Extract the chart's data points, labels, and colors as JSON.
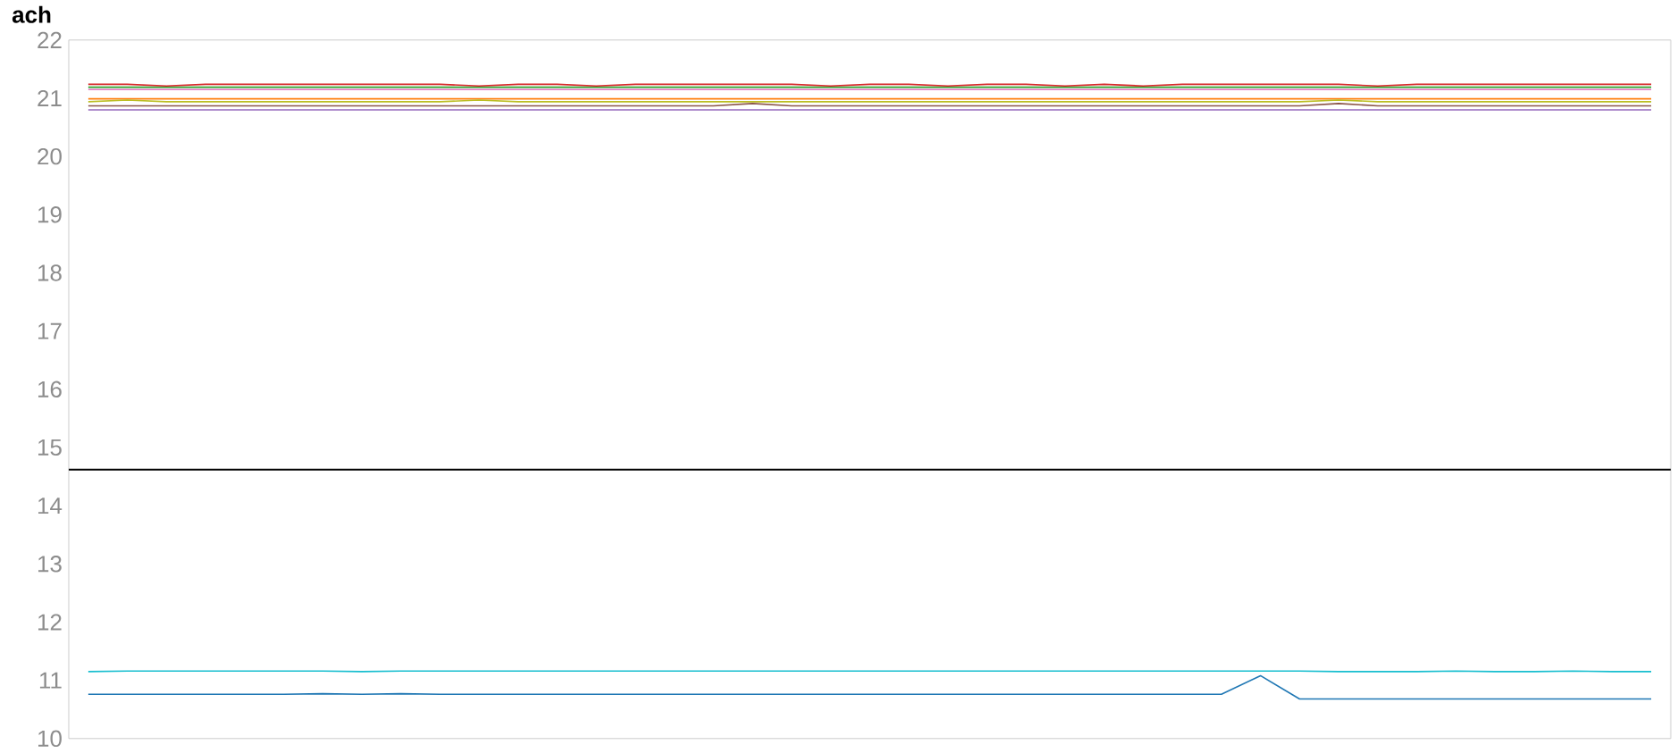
{
  "chart_data": {
    "type": "line",
    "ylabel": "ach",
    "categories": [
      null,
      null,
      null,
      null,
      null,
      null,
      null,
      null,
      null,
      null,
      null,
      null,
      null,
      null,
      null,
      null,
      null,
      null,
      null,
      null,
      null,
      null,
      null,
      null,
      null,
      null,
      null,
      null,
      null,
      null,
      null,
      null,
      null,
      null,
      null,
      null,
      null,
      null,
      null,
      null,
      null
    ],
    "ylim": [
      10,
      22
    ],
    "yticks": [
      10,
      11,
      12,
      13,
      14,
      15,
      16,
      17,
      18,
      19,
      20,
      21,
      22
    ],
    "grid": false,
    "marker": "none",
    "line_style": "solid",
    "ref_lines": [
      {
        "axis": "y",
        "value": 14.62,
        "color": "#000000"
      }
    ],
    "series": [
      {
        "color": "#2ca02c",
        "values": [
          21.19,
          21.19,
          21.19,
          21.19,
          21.19,
          21.19,
          21.19,
          21.19,
          21.19,
          21.19,
          21.19,
          21.19,
          21.19,
          21.19,
          21.19,
          21.19,
          21.19,
          21.19,
          21.19,
          21.19,
          21.19,
          21.19,
          21.19,
          21.19,
          21.19,
          21.19,
          21.19,
          21.19,
          21.19,
          21.19,
          21.19,
          21.19,
          21.19,
          21.19,
          21.19,
          21.19,
          21.19,
          21.19,
          21.19,
          21.19,
          21.19
        ]
      },
      {
        "color": "#e377c2",
        "values": [
          21.15,
          21.15,
          21.15,
          21.15,
          21.15,
          21.15,
          21.15,
          21.15,
          21.15,
          21.15,
          21.15,
          21.15,
          21.15,
          21.15,
          21.15,
          21.15,
          21.15,
          21.15,
          21.15,
          21.15,
          21.15,
          21.15,
          21.15,
          21.15,
          21.15,
          21.15,
          21.15,
          21.15,
          21.15,
          21.15,
          21.15,
          21.15,
          21.15,
          21.15,
          21.15,
          21.15,
          21.15,
          21.15,
          21.15,
          21.15,
          21.15
        ]
      },
      {
        "color": "#d62728",
        "values": [
          21.24,
          21.24,
          21.21,
          21.24,
          21.24,
          21.24,
          21.24,
          21.24,
          21.24,
          21.24,
          21.21,
          21.24,
          21.24,
          21.21,
          21.24,
          21.24,
          21.24,
          21.24,
          21.24,
          21.21,
          21.24,
          21.24,
          21.21,
          21.24,
          21.24,
          21.21,
          21.24,
          21.21,
          21.24,
          21.24,
          21.24,
          21.24,
          21.24,
          21.21,
          21.24,
          21.24,
          21.24,
          21.24,
          21.24,
          21.24,
          21.24
        ]
      },
      {
        "color": "#ff7f0e",
        "values": [
          20.99,
          20.99,
          20.99,
          20.99,
          20.99,
          20.99,
          20.99,
          20.99,
          20.99,
          20.99,
          20.99,
          20.99,
          20.99,
          20.99,
          20.99,
          20.99,
          20.99,
          20.99,
          20.99,
          20.99,
          20.99,
          20.99,
          20.99,
          20.99,
          20.99,
          20.99,
          20.99,
          20.99,
          20.99,
          20.99,
          20.99,
          20.99,
          20.99,
          20.99,
          20.99,
          20.99,
          20.99,
          20.99,
          20.99,
          20.99,
          20.99
        ]
      },
      {
        "color": "#bcbd22",
        "values": [
          20.94,
          20.97,
          20.94,
          20.94,
          20.94,
          20.94,
          20.94,
          20.94,
          20.94,
          20.94,
          20.97,
          20.94,
          20.94,
          20.94,
          20.94,
          20.94,
          20.94,
          20.94,
          20.94,
          20.94,
          20.94,
          20.94,
          20.94,
          20.94,
          20.94,
          20.94,
          20.94,
          20.94,
          20.94,
          20.94,
          20.94,
          20.94,
          20.97,
          20.94,
          20.94,
          20.94,
          20.94,
          20.94,
          20.94,
          20.94,
          20.94
        ]
      },
      {
        "color": "#8c564b",
        "values": [
          20.87,
          20.87,
          20.87,
          20.87,
          20.87,
          20.87,
          20.87,
          20.87,
          20.87,
          20.87,
          20.87,
          20.87,
          20.87,
          20.87,
          20.87,
          20.87,
          20.87,
          20.91,
          20.87,
          20.87,
          20.87,
          20.87,
          20.87,
          20.87,
          20.87,
          20.87,
          20.87,
          20.87,
          20.87,
          20.87,
          20.87,
          20.87,
          20.91,
          20.87,
          20.87,
          20.87,
          20.87,
          20.87,
          20.87,
          20.87,
          20.87
        ]
      },
      {
        "color": "#9467bd",
        "values": [
          20.8,
          20.8,
          20.8,
          20.8,
          20.8,
          20.8,
          20.8,
          20.8,
          20.8,
          20.8,
          20.8,
          20.8,
          20.8,
          20.8,
          20.8,
          20.8,
          20.8,
          20.8,
          20.8,
          20.8,
          20.8,
          20.8,
          20.8,
          20.8,
          20.8,
          20.8,
          20.8,
          20.8,
          20.8,
          20.8,
          20.8,
          20.8,
          20.8,
          20.8,
          20.8,
          20.8,
          20.8,
          20.8,
          20.8,
          20.8,
          20.8
        ]
      },
      {
        "color": "#17becf",
        "values": [
          11.15,
          11.16,
          11.16,
          11.16,
          11.16,
          11.16,
          11.16,
          11.15,
          11.16,
          11.16,
          11.16,
          11.16,
          11.16,
          11.16,
          11.16,
          11.16,
          11.16,
          11.16,
          11.16,
          11.16,
          11.16,
          11.16,
          11.16,
          11.16,
          11.16,
          11.16,
          11.16,
          11.16,
          11.16,
          11.16,
          11.16,
          11.16,
          11.15,
          11.15,
          11.15,
          11.16,
          11.15,
          11.15,
          11.16,
          11.15,
          11.15
        ]
      },
      {
        "color": "#1f77b4",
        "values": [
          10.76,
          10.76,
          10.76,
          10.76,
          10.76,
          10.76,
          10.77,
          10.76,
          10.77,
          10.76,
          10.76,
          10.76,
          10.76,
          10.76,
          10.76,
          10.76,
          10.76,
          10.76,
          10.76,
          10.76,
          10.76,
          10.76,
          10.76,
          10.76,
          10.76,
          10.76,
          10.76,
          10.76,
          10.76,
          10.76,
          11.08,
          10.68,
          10.68,
          10.68,
          10.68,
          10.68,
          10.68,
          10.68,
          10.68,
          10.68,
          10.68
        ]
      }
    ]
  }
}
